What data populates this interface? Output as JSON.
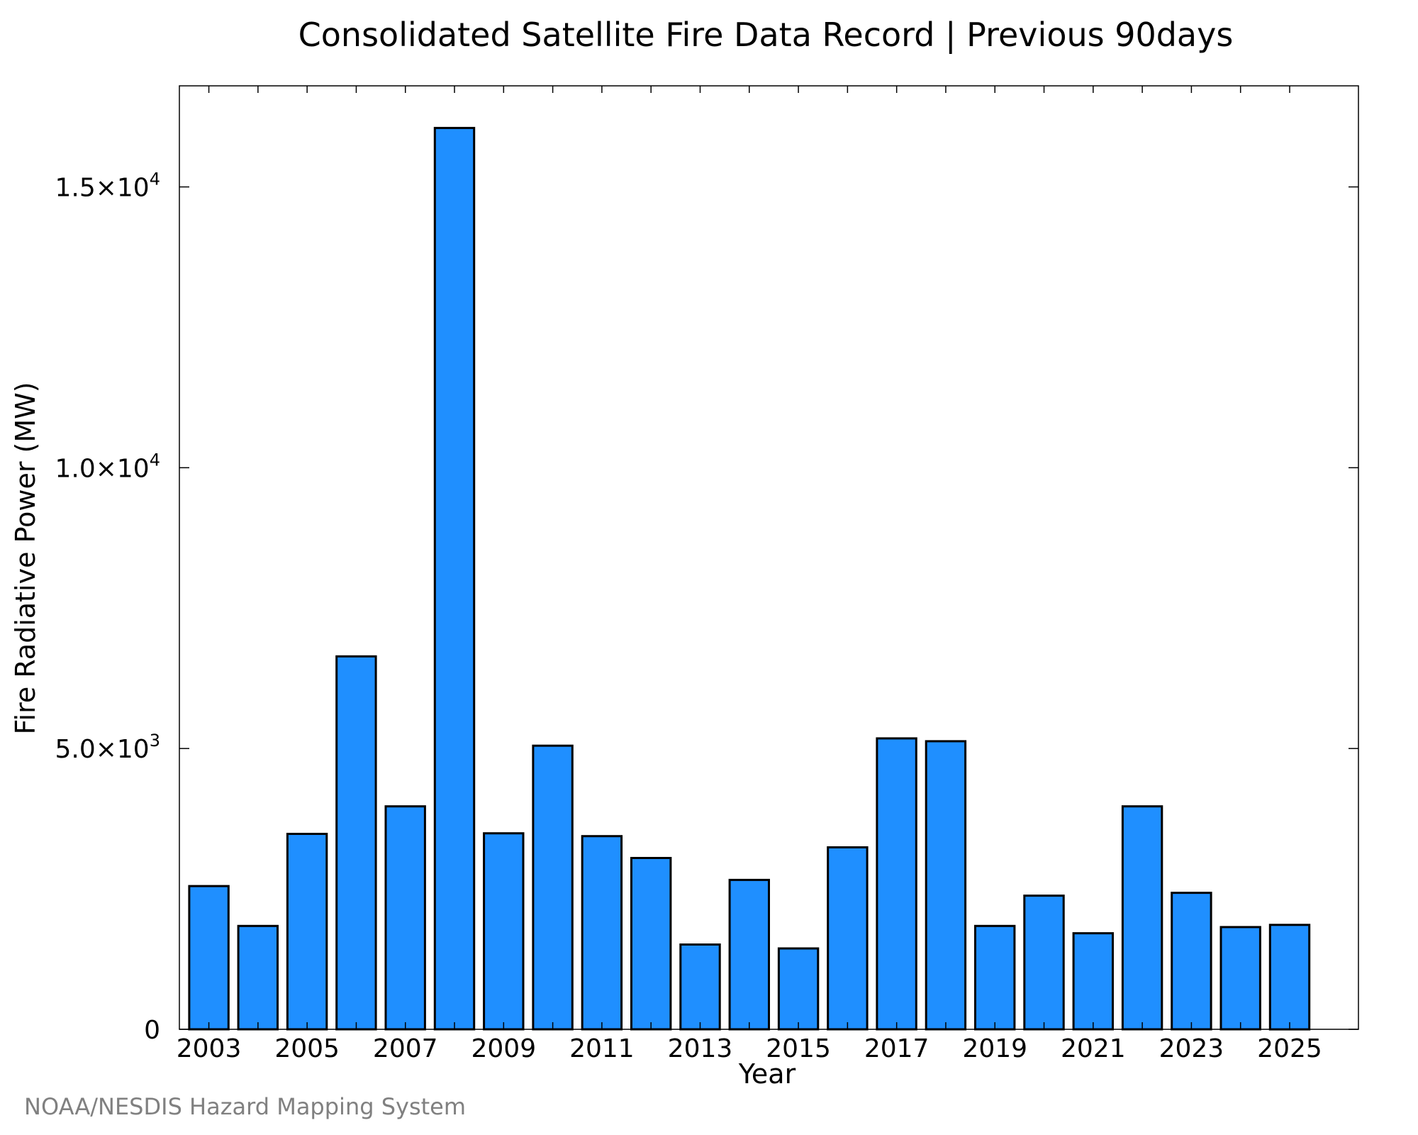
{
  "chart_data": {
    "type": "bar",
    "title": "Consolidated Satellite Fire Data Record | Previous 90days",
    "xlabel": "Year",
    "ylabel": "Fire Radiative Power (MW)",
    "source": "NOAA/NESDIS Hazard Mapping System",
    "categories": [
      "2003",
      "2004",
      "2005",
      "2006",
      "2007",
      "2008",
      "2009",
      "2010",
      "2011",
      "2012",
      "2013",
      "2014",
      "2015",
      "2016",
      "2017",
      "2018",
      "2019",
      "2020",
      "2021",
      "2022",
      "2023",
      "2024",
      "2025"
    ],
    "values": [
      2550,
      1840,
      3480,
      6640,
      3970,
      16050,
      3490,
      5050,
      3440,
      3050,
      1510,
      2660,
      1440,
      3240,
      5180,
      5130,
      1840,
      2380,
      1710,
      3970,
      2430,
      1820,
      1860
    ],
    "xticks": [
      "2003",
      "2005",
      "2007",
      "2009",
      "2011",
      "2013",
      "2015",
      "2017",
      "2019",
      "2021",
      "2023",
      "2025"
    ],
    "yticks": [
      {
        "value": 0,
        "mantissa": "0",
        "exp": ""
      },
      {
        "value": 5000,
        "mantissa": "5.0×10",
        "exp": "3"
      },
      {
        "value": 10000,
        "mantissa": "1.0×10",
        "exp": "4"
      },
      {
        "value": 15000,
        "mantissa": "1.5×10",
        "exp": "4"
      }
    ],
    "ylim": [
      0,
      16800
    ],
    "bar_color": "#1f8fff",
    "edge_color": "#000000",
    "grid": false,
    "legend": "none"
  }
}
